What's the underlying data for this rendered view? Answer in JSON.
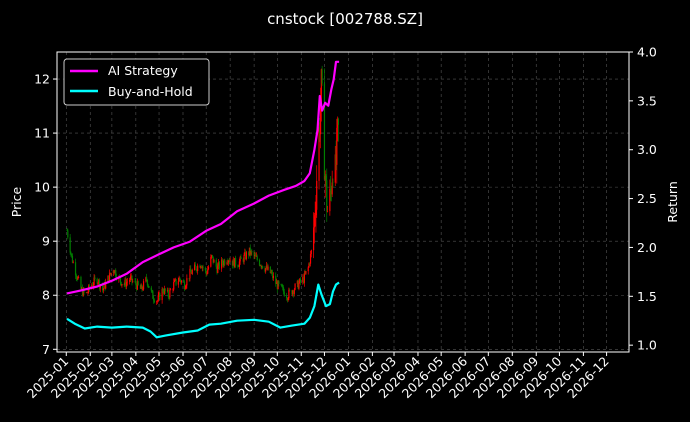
{
  "chart_data": {
    "type": "line",
    "title": "cnstock [002788.SZ]",
    "xlabel": "",
    "ylabel": "Price",
    "y2label": "Return",
    "x_ticks": [
      "2025-01",
      "2025-02",
      "2025-03",
      "2025-04",
      "2025-05",
      "2025-06",
      "2025-07",
      "2025-08",
      "2025-09",
      "2025-10",
      "2025-11",
      "2025-12",
      "2026-01",
      "2026-02",
      "2026-03",
      "2026-04",
      "2026-05",
      "2026-06",
      "2026-07",
      "2026-08",
      "2026-09",
      "2026-10",
      "2026-11",
      "2026-12"
    ],
    "xlim": [
      "2024-12-20",
      "2026-12-30"
    ],
    "ylim": [
      6.95,
      12.5
    ],
    "y_ticks": [
      7,
      8,
      9,
      10,
      11,
      12
    ],
    "y2lim": [
      0.93,
      4.0
    ],
    "y2_ticks": [
      "1.0",
      "1.5",
      "2.0",
      "2.5",
      "3.0",
      "3.5",
      "4.0"
    ],
    "grid": true,
    "legend": "top-left",
    "colors": {
      "up": "#ff0000",
      "down": "#008000",
      "ai": "#ff00ff",
      "bh": "#00ffff",
      "background": "#000000",
      "foreground": "#ffffff"
    },
    "series": [
      {
        "name": "AI Strategy",
        "axis": "right",
        "color": "#ff00ff",
        "points": [
          [
            "2025-01-02",
            1.53
          ],
          [
            "2025-01-20",
            1.56
          ],
          [
            "2025-02-10",
            1.6
          ],
          [
            "2025-03-01",
            1.66
          ],
          [
            "2025-03-20",
            1.73
          ],
          [
            "2025-04-10",
            1.85
          ],
          [
            "2025-05-01",
            1.93
          ],
          [
            "2025-05-20",
            2.0
          ],
          [
            "2025-06-10",
            2.06
          ],
          [
            "2025-07-01",
            2.17
          ],
          [
            "2025-07-20",
            2.24
          ],
          [
            "2025-08-10",
            2.37
          ],
          [
            "2025-09-01",
            2.45
          ],
          [
            "2025-09-20",
            2.53
          ],
          [
            "2025-10-10",
            2.59
          ],
          [
            "2025-10-25",
            2.63
          ],
          [
            "2025-11-05",
            2.68
          ],
          [
            "2025-11-12",
            2.76
          ],
          [
            "2025-11-18",
            3.0
          ],
          [
            "2025-11-22",
            3.2
          ],
          [
            "2025-11-25",
            3.55
          ],
          [
            "2025-11-28",
            3.4
          ],
          [
            "2025-12-02",
            3.48
          ],
          [
            "2025-12-06",
            3.45
          ],
          [
            "2025-12-10",
            3.62
          ],
          [
            "2025-12-13",
            3.72
          ],
          [
            "2025-12-16",
            3.9
          ],
          [
            "2025-12-20",
            3.9
          ]
        ]
      },
      {
        "name": "Buy-and-Hold",
        "axis": "right",
        "color": "#00ffff",
        "points": [
          [
            "2025-01-02",
            1.27
          ],
          [
            "2025-01-12",
            1.22
          ],
          [
            "2025-01-25",
            1.17
          ],
          [
            "2025-02-10",
            1.19
          ],
          [
            "2025-03-01",
            1.18
          ],
          [
            "2025-03-20",
            1.19
          ],
          [
            "2025-04-10",
            1.18
          ],
          [
            "2025-04-20",
            1.14
          ],
          [
            "2025-04-28",
            1.08
          ],
          [
            "2025-05-10",
            1.1
          ],
          [
            "2025-06-01",
            1.13
          ],
          [
            "2025-06-20",
            1.15
          ],
          [
            "2025-07-05",
            1.21
          ],
          [
            "2025-07-20",
            1.22
          ],
          [
            "2025-08-10",
            1.25
          ],
          [
            "2025-09-01",
            1.26
          ],
          [
            "2025-09-20",
            1.24
          ],
          [
            "2025-10-05",
            1.18
          ],
          [
            "2025-10-20",
            1.2
          ],
          [
            "2025-11-05",
            1.22
          ],
          [
            "2025-11-12",
            1.28
          ],
          [
            "2025-11-18",
            1.4
          ],
          [
            "2025-11-23",
            1.62
          ],
          [
            "2025-11-27",
            1.52
          ],
          [
            "2025-12-03",
            1.4
          ],
          [
            "2025-12-08",
            1.42
          ],
          [
            "2025-12-12",
            1.55
          ],
          [
            "2025-12-16",
            1.62
          ],
          [
            "2025-12-20",
            1.64
          ]
        ]
      },
      {
        "name": "",
        "axis": "left",
        "role": "candlestick-close",
        "points": [
          [
            "2025-01-02",
            9.2
          ],
          [
            "2025-01-08",
            8.7
          ],
          [
            "2025-01-14",
            8.4
          ],
          [
            "2025-01-20",
            8.1
          ],
          [
            "2025-01-26",
            8.0
          ],
          [
            "2025-02-03",
            8.2
          ],
          [
            "2025-02-10",
            8.3
          ],
          [
            "2025-02-17",
            8.1
          ],
          [
            "2025-02-24",
            8.3
          ],
          [
            "2025-03-03",
            8.5
          ],
          [
            "2025-03-10",
            8.3
          ],
          [
            "2025-03-17",
            8.2
          ],
          [
            "2025-03-24",
            8.3
          ],
          [
            "2025-04-01",
            8.2
          ],
          [
            "2025-04-08",
            8.1
          ],
          [
            "2025-04-15",
            8.3
          ],
          [
            "2025-04-22",
            8.0
          ],
          [
            "2025-04-29",
            7.9
          ],
          [
            "2025-05-06",
            8.1
          ],
          [
            "2025-05-13",
            8.0
          ],
          [
            "2025-05-20",
            8.2
          ],
          [
            "2025-05-27",
            8.3
          ],
          [
            "2025-06-03",
            8.2
          ],
          [
            "2025-06-10",
            8.4
          ],
          [
            "2025-06-17",
            8.5
          ],
          [
            "2025-06-24",
            8.6
          ],
          [
            "2025-07-01",
            8.4
          ],
          [
            "2025-07-08",
            8.7
          ],
          [
            "2025-07-15",
            8.5
          ],
          [
            "2025-07-22",
            8.6
          ],
          [
            "2025-07-29",
            8.7
          ],
          [
            "2025-08-05",
            8.6
          ],
          [
            "2025-08-12",
            8.6
          ],
          [
            "2025-08-19",
            8.7
          ],
          [
            "2025-08-26",
            8.8
          ],
          [
            "2025-09-02",
            8.7
          ],
          [
            "2025-09-09",
            8.6
          ],
          [
            "2025-09-16",
            8.5
          ],
          [
            "2025-09-23",
            8.4
          ],
          [
            "2025-09-30",
            8.2
          ],
          [
            "2025-10-07",
            8.1
          ],
          [
            "2025-10-14",
            8.0
          ],
          [
            "2025-10-21",
            8.1
          ],
          [
            "2025-10-28",
            8.2
          ],
          [
            "2025-11-04",
            8.3
          ],
          [
            "2025-11-10",
            8.5
          ],
          [
            "2025-11-14",
            8.8
          ],
          [
            "2025-11-18",
            9.4
          ],
          [
            "2025-11-21",
            10.2
          ],
          [
            "2025-11-24",
            11.0
          ],
          [
            "2025-11-27",
            11.8
          ],
          [
            "2025-11-30",
            10.9
          ],
          [
            "2025-12-03",
            9.9
          ],
          [
            "2025-12-06",
            9.4
          ],
          [
            "2025-12-09",
            9.9
          ],
          [
            "2025-12-12",
            10.5
          ],
          [
            "2025-12-15",
            10.2
          ],
          [
            "2025-12-18",
            10.9
          ],
          [
            "2025-12-20",
            11.1
          ]
        ]
      }
    ]
  }
}
